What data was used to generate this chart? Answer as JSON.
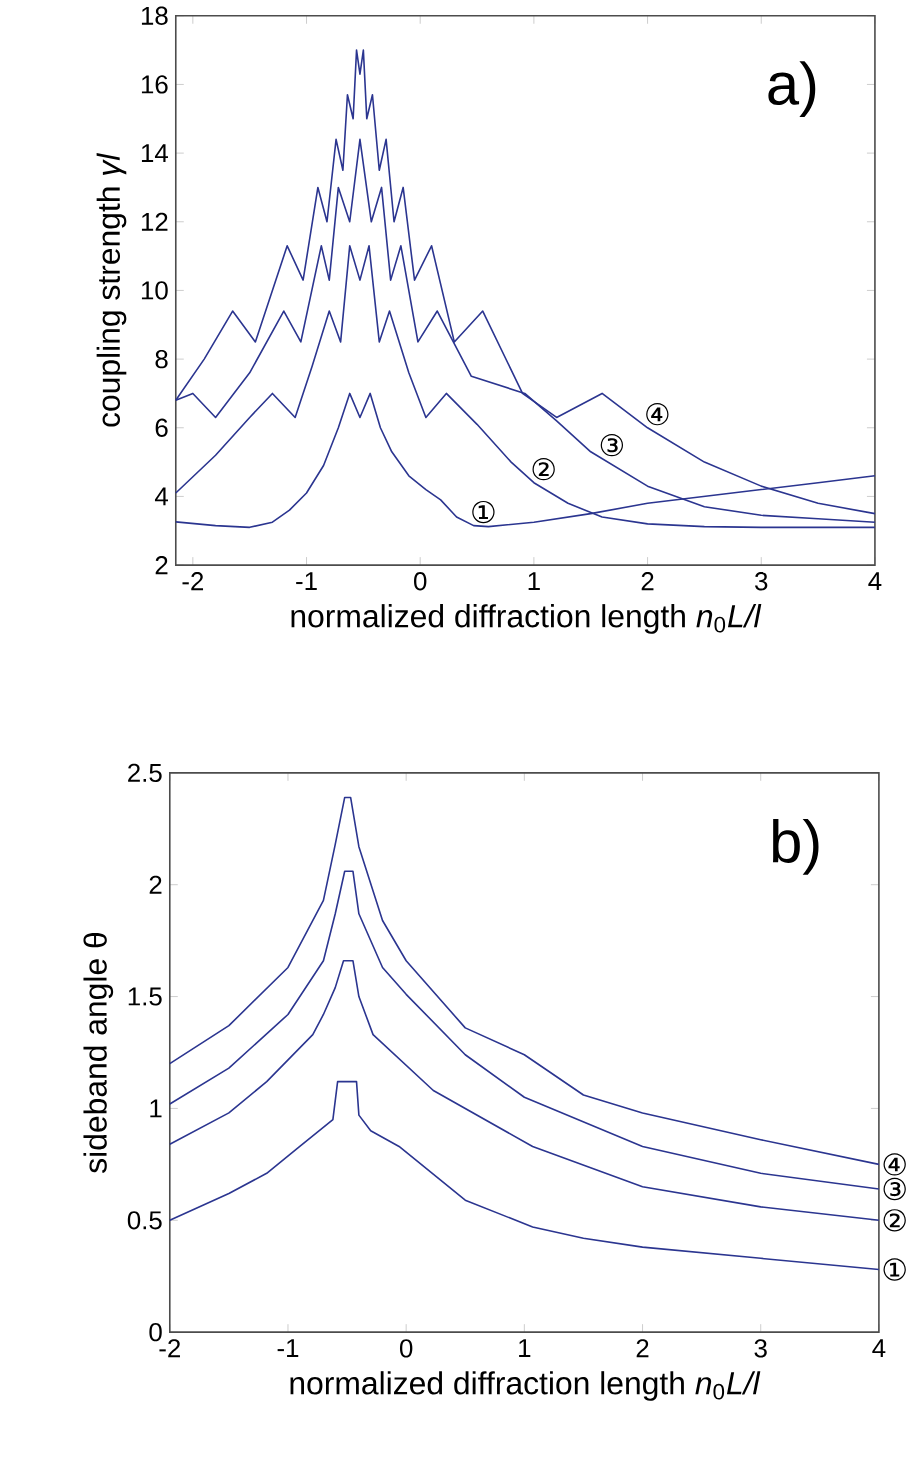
{
  "chart_data": [
    {
      "type": "line",
      "xlabel": "normalized diffraction length *n*$_{0}$*L/l*",
      "ylabel": "coupling strength *γl*",
      "xlim": [
        -2.15,
        4
      ],
      "ylim": [
        2,
        18
      ],
      "xticks": [
        -2,
        -1,
        0,
        1,
        2,
        3,
        4
      ],
      "yticks": [
        2,
        4,
        6,
        8,
        10,
        12,
        14,
        16,
        18
      ],
      "annotations": [
        "a)",
        {
          "text": "①",
          "x": 0.47,
          "y": 3.15
        },
        {
          "text": "②",
          "x": 1.0,
          "y": 4.4
        },
        {
          "text": "③",
          "x": 1.6,
          "y": 5.1
        },
        {
          "text": "④",
          "x": 2.0,
          "y": 6.0
        }
      ],
      "series": [
        {
          "color": "#2b3590",
          "x": [
            -2.15,
            -1.8,
            -1.5,
            -1.3,
            -1.15,
            -1.0,
            -0.85,
            -0.72,
            -0.62,
            -0.53,
            -0.44,
            -0.35,
            -0.25,
            -0.1,
            0.05,
            0.18,
            0.32,
            0.47,
            0.6,
            1.0,
            1.5,
            2.0,
            2.5,
            3.0,
            3.5,
            4.0
          ],
          "values": [
            3.26,
            3.15,
            3.1,
            3.25,
            3.6,
            4.1,
            4.9,
            6.0,
            7.0,
            6.3,
            7.0,
            6.0,
            5.3,
            4.6,
            4.2,
            3.9,
            3.4,
            3.15,
            3.12,
            3.25,
            3.5,
            3.8,
            4.0,
            4.2,
            4.4,
            4.6
          ]
        },
        {
          "color": "#2b3590",
          "x": [
            -2.15,
            -1.8,
            -1.5,
            -1.3,
            -1.1,
            -0.95,
            -0.8,
            -0.7,
            -0.62,
            -0.53,
            -0.45,
            -0.36,
            -0.27,
            -0.1,
            0.05,
            0.23,
            0.5,
            0.8,
            1.0,
            1.3,
            1.6,
            2.0,
            2.5,
            3.0,
            4.0
          ],
          "values": [
            4.1,
            5.2,
            6.3,
            7.0,
            6.3,
            7.8,
            9.4,
            8.5,
            11.3,
            10.3,
            11.3,
            8.5,
            9.4,
            7.6,
            6.3,
            7.0,
            6.1,
            5.0,
            4.4,
            3.8,
            3.4,
            3.2,
            3.12,
            3.1,
            3.1
          ]
        },
        {
          "color": "#2b3590",
          "x": [
            -2.15,
            -2.0,
            -1.8,
            -1.5,
            -1.2,
            -1.05,
            -0.87,
            -0.8,
            -0.72,
            -0.62,
            -0.53,
            -0.43,
            -0.34,
            -0.26,
            -0.17,
            -0.02,
            0.15,
            0.45,
            0.92,
            1.2,
            1.5,
            2.0,
            2.5,
            3.0,
            3.5,
            4.0
          ],
          "values": [
            6.8,
            7.0,
            6.3,
            7.6,
            9.4,
            8.5,
            11.3,
            10.3,
            13.0,
            12.0,
            14.4,
            12.0,
            13.0,
            10.3,
            11.3,
            8.5,
            9.4,
            7.5,
            7.0,
            6.2,
            5.3,
            4.3,
            3.7,
            3.45,
            3.35,
            3.25
          ]
        },
        {
          "color": "#2b3590",
          "x": [
            -2.15,
            -1.9,
            -1.65,
            -1.45,
            -1.17,
            -1.03,
            -0.9,
            -0.82,
            -0.74,
            -0.68,
            -0.64,
            -0.59,
            -0.56,
            -0.53,
            -0.5,
            -0.47,
            -0.42,
            -0.36,
            -0.3,
            -0.23,
            -0.15,
            -0.05,
            0.1,
            0.3,
            0.55,
            0.9,
            1.2,
            1.6,
            2.0,
            2.5,
            3.0,
            3.5,
            4.0
          ],
          "values": [
            6.8,
            8.0,
            9.4,
            8.5,
            11.3,
            10.3,
            13.0,
            12.0,
            14.4,
            13.5,
            15.7,
            15.0,
            17.0,
            16.3,
            17.0,
            15.0,
            15.7,
            13.5,
            14.4,
            12.0,
            13.0,
            10.3,
            11.3,
            8.5,
            9.4,
            7.0,
            6.3,
            7.0,
            6.0,
            5.0,
            4.3,
            3.8,
            3.5
          ]
        }
      ]
    },
    {
      "type": "line",
      "xlabel": "normalized diffraction length *n*$_{0}$*L/l*",
      "ylabel": "sideband angle θ",
      "xlim": [
        -2,
        4
      ],
      "ylim": [
        0,
        2.5
      ],
      "xticks": [
        -2,
        -1,
        0,
        1,
        2,
        3,
        4
      ],
      "yticks": [
        0,
        0.5,
        1,
        1.5,
        2,
        2.5
      ],
      "annotations": [
        "b)",
        {
          "text": "①",
          "x": 4,
          "y": 0.28
        },
        {
          "text": "②",
          "x": 4,
          "y": 0.5
        },
        {
          "text": "③",
          "x": 4,
          "y": 0.64
        },
        {
          "text": "④",
          "x": 4,
          "y": 0.75
        }
      ],
      "series": [
        {
          "color": "#2b3590",
          "x": [
            -2,
            -1.5,
            -1.18,
            -0.9,
            -0.62,
            -0.58,
            -0.42,
            -0.4,
            -0.3,
            -0.06,
            0.5,
            1.07,
            1.5,
            2,
            3,
            4
          ],
          "values": [
            0.5,
            0.62,
            0.71,
            0.83,
            0.95,
            1.12,
            1.12,
            0.97,
            0.9,
            0.83,
            0.59,
            0.47,
            0.42,
            0.38,
            0.33,
            0.28
          ]
        },
        {
          "color": "#2b3590",
          "x": [
            -2,
            -1.5,
            -1.18,
            -0.79,
            -0.7,
            -0.6,
            -0.53,
            -0.45,
            -0.4,
            -0.28,
            0.23,
            1.07,
            2,
            3,
            4
          ],
          "values": [
            0.84,
            0.98,
            1.12,
            1.33,
            1.42,
            1.54,
            1.66,
            1.66,
            1.5,
            1.33,
            1.08,
            0.83,
            0.65,
            0.56,
            0.5
          ]
        },
        {
          "color": "#2b3590",
          "x": [
            -2,
            -1.5,
            -1,
            -0.7,
            -0.6,
            -0.52,
            -0.45,
            -0.4,
            -0.2,
            0,
            0.5,
            1,
            2,
            3,
            4
          ],
          "values": [
            1.02,
            1.18,
            1.42,
            1.66,
            1.87,
            2.06,
            2.06,
            1.87,
            1.63,
            1.51,
            1.24,
            1.05,
            0.83,
            0.71,
            0.64
          ]
        },
        {
          "color": "#2b3590",
          "x": [
            -2,
            -1.5,
            -1,
            -0.7,
            -0.6,
            -0.52,
            -0.47,
            -0.4,
            -0.2,
            0,
            0.5,
            1,
            1.5,
            2,
            3,
            4
          ],
          "values": [
            1.2,
            1.37,
            1.63,
            1.93,
            2.18,
            2.39,
            2.39,
            2.17,
            1.84,
            1.66,
            1.36,
            1.24,
            1.06,
            0.98,
            0.86,
            0.75
          ]
        }
      ]
    }
  ]
}
